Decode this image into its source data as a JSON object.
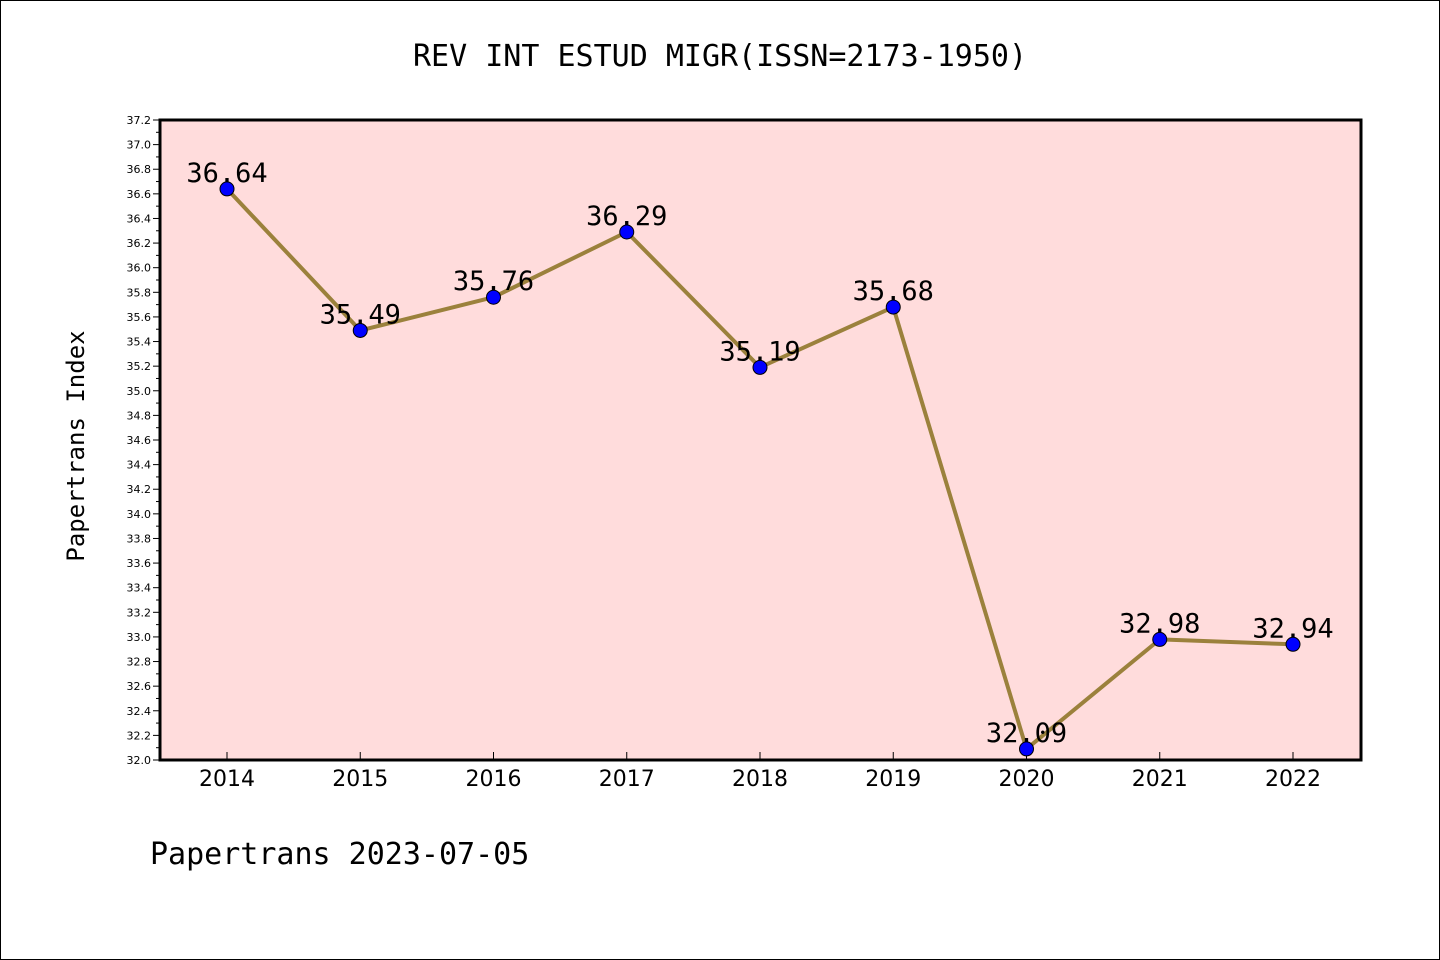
{
  "chart_data": {
    "type": "line",
    "title": "REV INT ESTUD MIGR(ISSN=2173-1950)",
    "ylabel": "Papertrans Index",
    "xlabel": "",
    "footer": "Papertrans 2023-07-05",
    "categories": [
      "2014",
      "2015",
      "2016",
      "2017",
      "2018",
      "2019",
      "2020",
      "2021",
      "2022"
    ],
    "values": [
      36.64,
      35.49,
      35.76,
      36.29,
      35.19,
      35.68,
      32.09,
      32.98,
      32.94
    ],
    "data_labels": [
      "36.64",
      "35.49",
      "35.76",
      "36.29",
      "35.19",
      "35.68",
      "32.09",
      "32.98",
      "32.94"
    ],
    "ylim": [
      32.0,
      37.2
    ],
    "ytick_step": 0.2,
    "ytick_labels": [
      "32.0",
      "32.2",
      "32.4",
      "32.6",
      "32.8",
      "33.0",
      "33.2",
      "33.4",
      "33.6",
      "33.8",
      "34.0",
      "34.2",
      "34.4",
      "34.6",
      "34.8",
      "35.0",
      "35.2",
      "35.4",
      "35.6",
      "35.8",
      "36.0",
      "36.2",
      "36.4",
      "36.6",
      "36.8",
      "37.0",
      "37.2"
    ],
    "grid": false,
    "colors": {
      "plot_background": "#ffdcdc",
      "line": "#9b813c",
      "marker": "#0000ff"
    }
  }
}
